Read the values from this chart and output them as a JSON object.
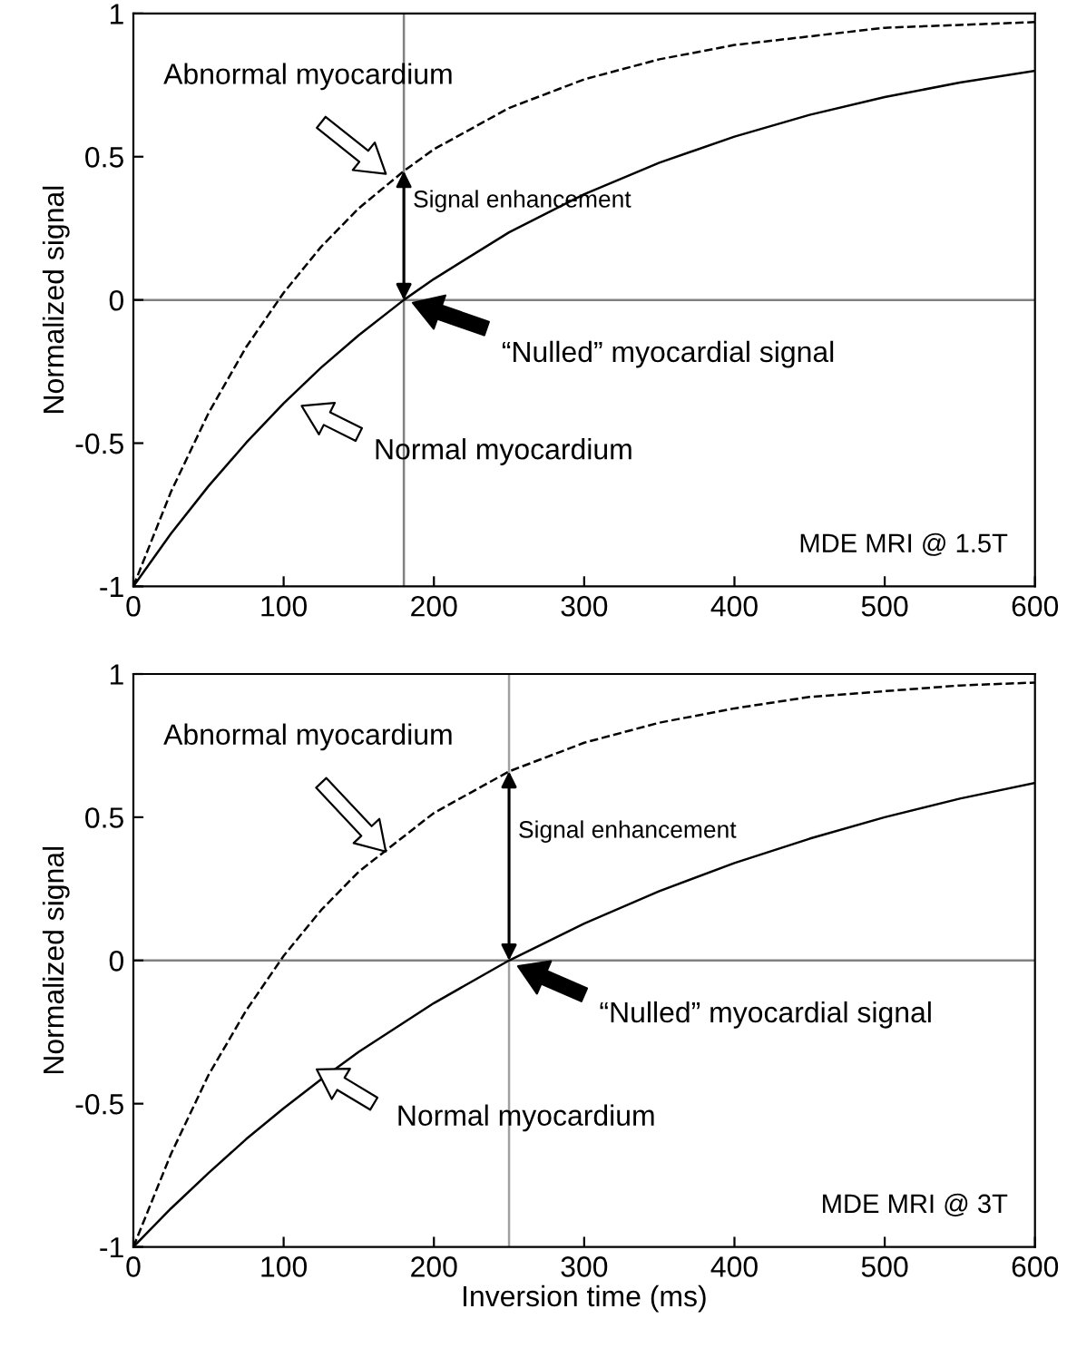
{
  "chart_data": [
    {
      "type": "line",
      "ylabel": "Normalized signal",
      "xlim": [
        0,
        600
      ],
      "ylim": [
        -1,
        1
      ],
      "xticks": [
        0,
        100,
        200,
        300,
        400,
        500,
        600
      ],
      "yticks": [
        -1,
        -0.5,
        0,
        0.5,
        1
      ],
      "grid": false,
      "legend": false,
      "x": [
        0,
        25,
        50,
        75,
        100,
        125,
        150,
        180,
        200,
        250,
        300,
        350,
        400,
        450,
        500,
        550,
        600
      ],
      "series": [
        {
          "color": "#000000",
          "line_style": "dashed",
          "values": [
            -1,
            -0.67,
            -0.395,
            -0.165,
            0.025,
            0.186,
            0.32,
            0.45,
            0.526,
            0.67,
            0.77,
            0.84,
            0.89,
            0.92,
            0.95,
            0.96,
            0.97
          ]
        },
        {
          "color": "#000000",
          "line_style": "solid",
          "values": [
            -1,
            -0.816,
            -0.65,
            -0.499,
            -0.361,
            -0.236,
            -0.123,
            0,
            0.073,
            0.236,
            0.369,
            0.479,
            0.57,
            0.646,
            0.708,
            0.759,
            0.8
          ]
        }
      ],
      "ref_lines": [
        {
          "axis": "y",
          "value": 0,
          "color": "#808080"
        },
        {
          "axis": "x",
          "value": 180,
          "color": "#808080"
        }
      ],
      "annotations": [
        "Abnormal myocardium",
        {
          "text": "Signal enhancement",
          "x": 180,
          "y": 0.45
        },
        "“Nulled” myocardial signal",
        "Normal myocardium",
        "MDE MRI @ 1.5T"
      ]
    },
    {
      "type": "line",
      "xlabel": "Inversion time (ms)",
      "ylabel": "Normalized signal",
      "xlim": [
        0,
        600
      ],
      "ylim": [
        -1,
        1
      ],
      "xticks": [
        0,
        100,
        200,
        300,
        400,
        500,
        600
      ],
      "yticks": [
        -1,
        -0.5,
        0,
        0.5,
        1
      ],
      "grid": false,
      "legend": false,
      "x": [
        0,
        25,
        50,
        75,
        100,
        125,
        150,
        200,
        250,
        300,
        350,
        400,
        450,
        500,
        550,
        600
      ],
      "series": [
        {
          "color": "#000000",
          "line_style": "dashed",
          "values": [
            -1,
            -0.676,
            -0.4,
            -0.175,
            0.016,
            0.176,
            0.31,
            0.515,
            0.66,
            0.76,
            0.83,
            0.88,
            0.92,
            0.94,
            0.96,
            0.97
          ]
        },
        {
          "color": "#000000",
          "line_style": "solid",
          "values": [
            -1,
            -0.866,
            -0.742,
            -0.624,
            -0.516,
            -0.415,
            -0.319,
            -0.149,
            0,
            0.129,
            0.242,
            0.34,
            0.425,
            0.5,
            0.565,
            0.62
          ]
        }
      ],
      "ref_lines": [
        {
          "axis": "y",
          "value": 0,
          "color": "#808080"
        },
        {
          "axis": "x",
          "value": 250,
          "color": "#a0a0a0"
        }
      ],
      "annotations": [
        "Abnormal myocardium",
        {
          "text": "Signal enhancement",
          "x": 250,
          "y": 0.66
        },
        "“Nulled” myocardial signal",
        "Normal myocardium",
        "MDE MRI @ 3T"
      ]
    }
  ]
}
